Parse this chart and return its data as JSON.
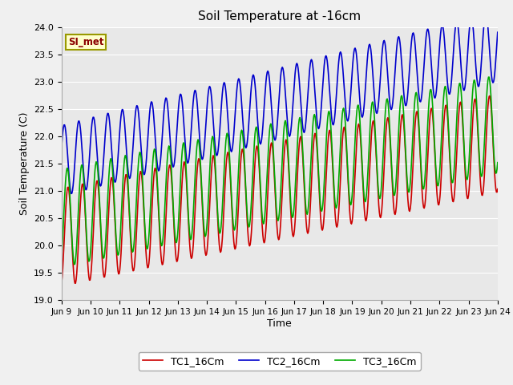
{
  "title": "Soil Temperature at -16cm",
  "xlabel": "Time",
  "ylabel": "Soil Temperature (C)",
  "ylim": [
    19.0,
    24.0
  ],
  "yticks": [
    19.0,
    19.5,
    20.0,
    20.5,
    21.0,
    21.5,
    22.0,
    22.5,
    23.0,
    23.5,
    24.0
  ],
  "xtick_labels": [
    "Jun 9",
    "Jun 10",
    "Jun 11",
    "Jun 12",
    "Jun 13",
    "Jun 14",
    "Jun 15",
    "Jun 16",
    "Jun 17",
    "Jun 18",
    "Jun 19",
    "Jun 20",
    "Jun 21",
    "Jun 22",
    "Jun 23",
    "Jun 24"
  ],
  "colors": {
    "TC1": "#cc0000",
    "TC2": "#0000cc",
    "TC3": "#00aa00"
  },
  "legend_label": "SI_met",
  "legend_box_facecolor": "#ffffcc",
  "legend_box_edgecolor": "#999900",
  "plot_bg_color": "#e8e8e8",
  "fig_bg_color": "#f0f0f0",
  "grid_color": "#ffffff",
  "line_width": 1.2,
  "TC1_base": 20.15,
  "TC1_trend": 0.115,
  "TC1_amp": 0.9,
  "TC1_phase": -1.2,
  "TC2_base": 21.55,
  "TC2_trend": 0.14,
  "TC2_amp": 0.65,
  "TC2_phase": 0.4,
  "TC3_base": 20.5,
  "TC3_trend": 0.115,
  "TC3_amp": 0.9,
  "TC3_phase": -0.9,
  "n_days": 15,
  "cycles_per_day": 2
}
